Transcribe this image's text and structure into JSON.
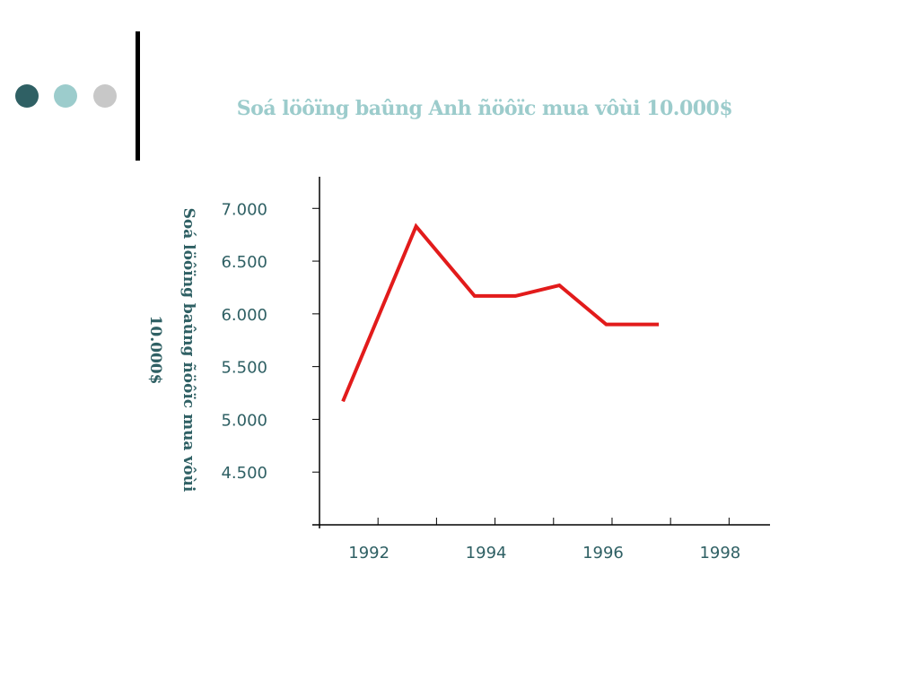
{
  "decor": {
    "dot_colors": [
      "#2f6064",
      "#9ccccc",
      "#c8c8c8"
    ],
    "divider_color": "#000000"
  },
  "colors": {
    "title": "#9ccccc",
    "text": "#2f6064",
    "axis": "#000000",
    "line": "#e21b1b"
  },
  "chart_data": {
    "type": "line",
    "title": "Soá löôïng baûng Anh ñöôïc mua vôùi 10.000$",
    "xlabel": "",
    "ylabel_lines": [
      "Soá löôïng baûng ñöôïc mua vôùi",
      "10.000$"
    ],
    "xlim": [
      1991,
      1998.7
    ],
    "ylim": [
      4000,
      7300
    ],
    "xticks": [
      1992,
      1993,
      1994,
      1995,
      1996,
      1997,
      1998
    ],
    "xtick_labels": [
      {
        "x": 1992,
        "label": "1992"
      },
      {
        "x": 1994,
        "label": "1994"
      },
      {
        "x": 1996,
        "label": "1996"
      },
      {
        "x": 1998,
        "label": "1998"
      }
    ],
    "yticks": [
      4500,
      5000,
      5500,
      6000,
      6500,
      7000
    ],
    "ytick_labels": [
      "4.500",
      "5.000",
      "5.500",
      "6.000",
      "6.500",
      "7.000"
    ],
    "series": [
      {
        "x": [
          1991.4,
          1992.65,
          1993.65,
          1994.35,
          1995.1,
          1995.9,
          1996.8
        ],
        "y": [
          5170,
          6830,
          6170,
          6170,
          6270,
          5900,
          5900
        ]
      }
    ],
    "grid": false,
    "legend": "none"
  }
}
